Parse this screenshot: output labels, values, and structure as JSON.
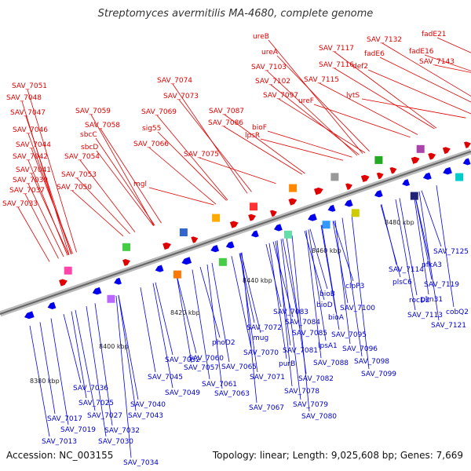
{
  "title": "Streptomyces avermitilis MA-4680, complete genome",
  "footer": {
    "accession": "Accession: NC_003155",
    "summary": "Topology: linear; Length: 9,025,608 bp; Genes: 7,669"
  },
  "axis": {
    "ticks": [
      "8380 kbp",
      "8400 kbp",
      "8420 kbp",
      "8440 kbp",
      "8460 kbp",
      "8480 kbp"
    ]
  },
  "colors": {
    "forward_gene": "#e00000",
    "reverse_gene": "#0000ee",
    "axis": "#888888"
  },
  "top_labels": [
    "SAV_7033",
    "SAV_7037",
    "SAV_7039",
    "SAV_7041",
    "SAV_7042",
    "SAV_7044",
    "SAV_7046",
    "SAV_7047",
    "SAV_7048",
    "SAV_7051",
    "SAV_7050",
    "SAV_7053",
    "SAV_7054",
    "sbcD",
    "sbcC",
    "SAV_7058",
    "SAV_7059",
    "mgl",
    "SAV_7066",
    "sig55",
    "SAV_7069",
    "SAV_7073",
    "SAV_7074",
    "SAV_7075",
    "SAV_7086",
    "SAV_7087",
    "lpsR",
    "bioF",
    "SAV_7097",
    "SAV_7102",
    "SAV_7103",
    "ureA",
    "ureB",
    "ureF",
    "SAV_7115",
    "SAV_7116",
    "SAV_7117",
    "lytS",
    "def2",
    "fadE6",
    "SAV_7132",
    "fadE16",
    "fadE21",
    "SAV_7143"
  ],
  "bottom_labels": [
    "SAV_7013",
    "SAV_7019",
    "SAV_7017",
    "SAV_7030",
    "SAV_7032",
    "SAV_7025",
    "SAV_7027",
    "SAV_7036",
    "SAV_7034",
    "SAV_7040",
    "SAV_7043",
    "SAV_7045",
    "SAV_7049",
    "SAV_7052",
    "SAV_7057",
    "SAV_7060",
    "SAV_7061",
    "SAV_7063",
    "phoD2",
    "SAV_7065",
    "SAV_7067",
    "SAV_7070",
    "SAV_7071",
    "SAV_7072",
    "mug",
    "purB",
    "SAV_7078",
    "SAV_7079",
    "SAV_7080",
    "SAV_7081",
    "SAV_7082",
    "lpsA1",
    "SAV_7083",
    "SAV_7084",
    "SAV_7085",
    "SAV_7088",
    "bioD",
    "bioB",
    "bioA",
    "clpP3",
    "SAV_7095",
    "SAV_7096",
    "SAV_7098",
    "SAV_7099",
    "SAV_7100",
    "SAV_7113",
    "rocD2",
    "SAV_7114",
    "plsC6",
    "SAV_7119",
    "pkn31",
    "SAV_7121",
    "cobQ2",
    "pfkA3",
    "SAV_7125"
  ]
}
